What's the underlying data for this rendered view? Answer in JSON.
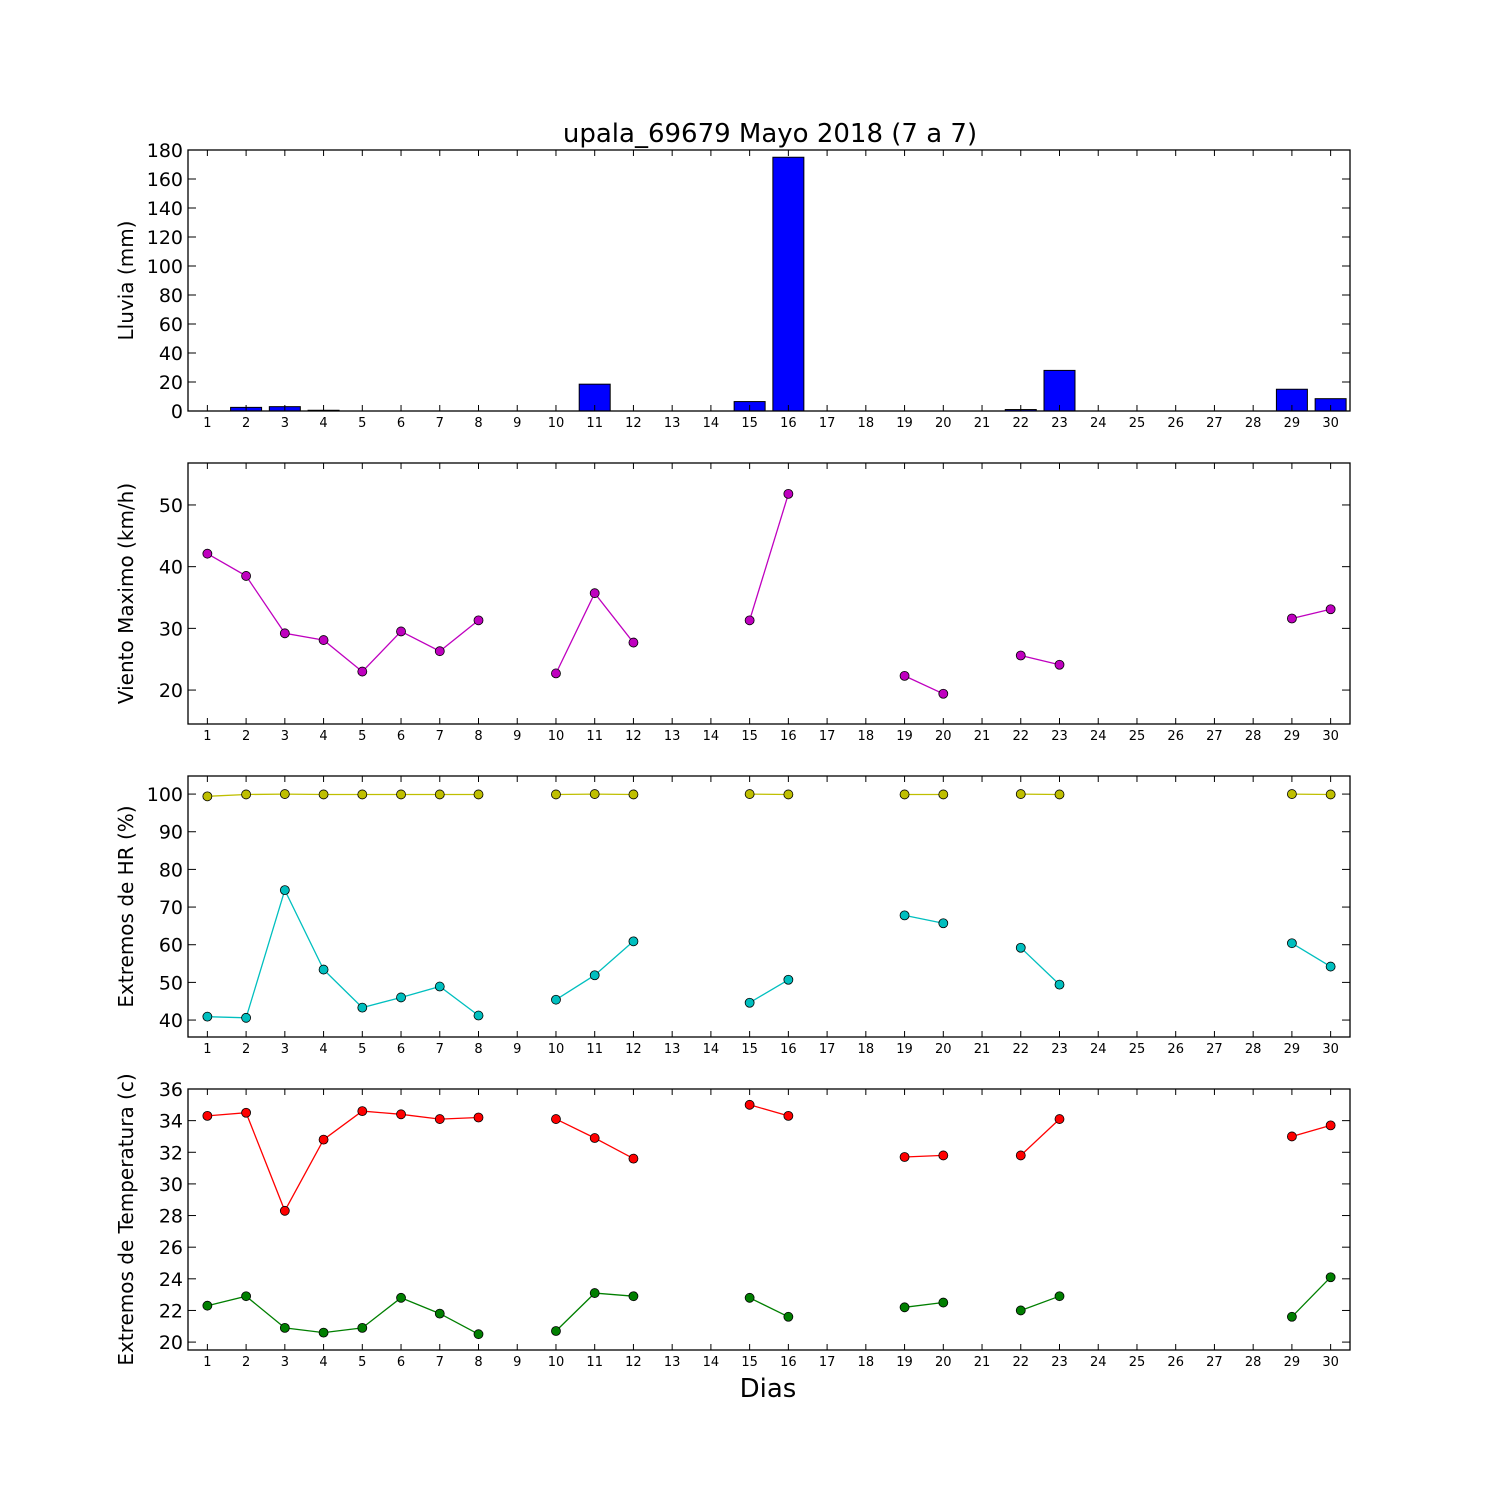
{
  "title": "upala_69679 Mayo 2018  (7 a 7)",
  "xlabel": "Dias",
  "chart_data": [
    {
      "type": "bar",
      "ylabel": "Lluvia (mm)",
      "ylim": [
        0,
        180
      ],
      "yticks": [
        0,
        20,
        40,
        60,
        80,
        100,
        120,
        140,
        160,
        180
      ],
      "x": [
        1,
        2,
        3,
        4,
        5,
        6,
        7,
        8,
        9,
        10,
        11,
        12,
        13,
        14,
        15,
        16,
        17,
        18,
        19,
        20,
        21,
        22,
        23,
        24,
        25,
        26,
        27,
        28,
        29,
        30
      ],
      "xticklabels": [
        "1",
        "2",
        "3",
        "4",
        "5",
        "6",
        "7",
        "8",
        "9",
        "10",
        "11",
        "12",
        "13",
        "14",
        "15",
        "16",
        "17",
        "18",
        "19",
        "20",
        "21",
        "22",
        "23",
        "24",
        "25",
        "26",
        "27",
        "28",
        "29",
        "30"
      ],
      "series": [
        {
          "color": "#0000ff",
          "values": [
            0,
            2.5,
            3.0,
            0.5,
            0,
            0,
            0,
            0,
            0,
            0,
            18.5,
            0,
            0,
            0,
            6.5,
            175,
            0,
            0,
            0,
            0,
            0,
            1.0,
            28,
            0,
            0,
            0,
            0,
            0,
            15,
            8.5
          ]
        }
      ]
    },
    {
      "type": "line",
      "ylabel": "Viento Maximo (km/h)",
      "ylim": [
        14.5,
        56.8
      ],
      "yticks": [
        20,
        30,
        40,
        50
      ],
      "x": [
        1,
        2,
        3,
        4,
        5,
        6,
        7,
        8,
        9,
        10,
        11,
        12,
        13,
        14,
        15,
        16,
        17,
        18,
        19,
        20,
        21,
        22,
        23,
        24,
        25,
        26,
        27,
        28,
        29,
        30
      ],
      "xticklabels": [
        "1",
        "2",
        "3",
        "4",
        "5",
        "6",
        "7",
        "8",
        "9",
        "10",
        "11",
        "12",
        "13",
        "14",
        "15",
        "16",
        "17",
        "18",
        "19",
        "20",
        "21",
        "22",
        "23",
        "24",
        "25",
        "26",
        "27",
        "28",
        "29",
        "30"
      ],
      "series": [
        {
          "color": "#bf00bf",
          "values": [
            42.1,
            38.5,
            29.2,
            28.1,
            23.0,
            29.5,
            26.3,
            31.3,
            null,
            22.7,
            35.7,
            27.7,
            null,
            null,
            31.3,
            51.8,
            null,
            null,
            22.3,
            19.4,
            null,
            25.6,
            24.1,
            null,
            null,
            null,
            null,
            null,
            31.6,
            33.1
          ]
        }
      ]
    },
    {
      "type": "line",
      "ylabel": "Extremos de HR (%)",
      "ylim": [
        35.5,
        104.8
      ],
      "yticks": [
        40,
        50,
        60,
        70,
        80,
        90,
        100
      ],
      "x": [
        1,
        2,
        3,
        4,
        5,
        6,
        7,
        8,
        9,
        10,
        11,
        12,
        13,
        14,
        15,
        16,
        17,
        18,
        19,
        20,
        21,
        22,
        23,
        24,
        25,
        26,
        27,
        28,
        29,
        30
      ],
      "xticklabels": [
        "1",
        "2",
        "3",
        "4",
        "5",
        "6",
        "7",
        "8",
        "9",
        "10",
        "11",
        "12",
        "13",
        "14",
        "15",
        "16",
        "17",
        "18",
        "19",
        "20",
        "21",
        "22",
        "23",
        "24",
        "25",
        "26",
        "27",
        "28",
        "29",
        "30"
      ],
      "series": [
        {
          "color": "#bfbf00",
          "values": [
            99.4,
            99.9,
            100,
            99.9,
            99.9,
            99.9,
            99.9,
            99.9,
            null,
            99.9,
            100,
            99.9,
            null,
            null,
            100,
            99.9,
            null,
            null,
            99.9,
            99.9,
            null,
            100,
            99.9,
            null,
            null,
            null,
            null,
            null,
            100,
            99.9
          ]
        },
        {
          "color": "#00bfbf",
          "values": [
            40.9,
            40.6,
            74.5,
            53.4,
            43.3,
            46.0,
            48.9,
            41.2,
            null,
            45.4,
            51.9,
            60.9,
            null,
            null,
            44.6,
            50.7,
            null,
            null,
            67.8,
            65.7,
            null,
            59.2,
            49.4,
            null,
            null,
            null,
            null,
            null,
            60.4,
            54.2
          ]
        }
      ]
    },
    {
      "type": "line",
      "ylabel": "Extremos de Temperatura (c)",
      "ylim": [
        19.5,
        36
      ],
      "yticks": [
        20,
        22,
        24,
        26,
        28,
        30,
        32,
        34,
        36
      ],
      "x": [
        1,
        2,
        3,
        4,
        5,
        6,
        7,
        8,
        9,
        10,
        11,
        12,
        13,
        14,
        15,
        16,
        17,
        18,
        19,
        20,
        21,
        22,
        23,
        24,
        25,
        26,
        27,
        28,
        29,
        30
      ],
      "xticklabels": [
        "1",
        "2",
        "3",
        "4",
        "5",
        "6",
        "7",
        "8",
        "9",
        "10",
        "11",
        "12",
        "13",
        "14",
        "15",
        "16",
        "17",
        "18",
        "19",
        "20",
        "21",
        "22",
        "23",
        "24",
        "25",
        "26",
        "27",
        "28",
        "29",
        "30"
      ],
      "series": [
        {
          "color": "#ff0000",
          "values": [
            34.3,
            34.5,
            28.3,
            32.8,
            34.6,
            34.4,
            34.1,
            34.2,
            null,
            34.1,
            32.9,
            31.6,
            null,
            null,
            35.0,
            34.3,
            null,
            null,
            31.7,
            31.8,
            null,
            31.8,
            34.1,
            null,
            null,
            null,
            null,
            null,
            33.0,
            33.7
          ]
        },
        {
          "color": "#007f00",
          "values": [
            22.3,
            22.9,
            20.9,
            20.6,
            20.9,
            22.8,
            21.8,
            20.5,
            null,
            20.7,
            23.1,
            22.9,
            null,
            null,
            22.8,
            21.6,
            null,
            null,
            22.2,
            22.5,
            null,
            22.0,
            22.9,
            null,
            null,
            null,
            null,
            null,
            21.6,
            24.1
          ]
        }
      ]
    }
  ]
}
